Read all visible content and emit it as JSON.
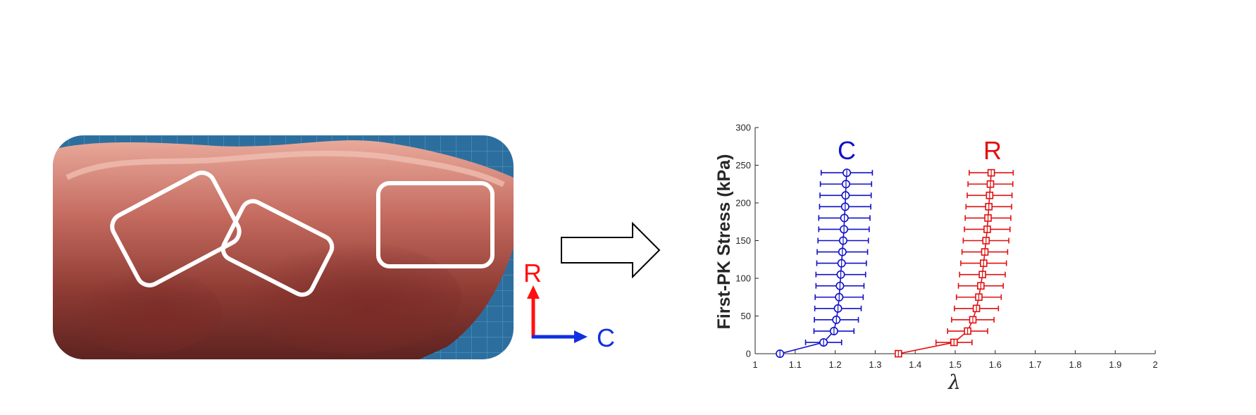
{
  "photo": {
    "icon": "heart-valve-tissue-photo"
  },
  "orientation_key": {
    "r_label": "R",
    "c_label": "C",
    "r_color": "#ff1010",
    "c_color": "#1030e0"
  },
  "flow_arrow": {
    "icon": "right-arrow-outline-icon"
  },
  "chart_data": {
    "type": "line",
    "title": "",
    "xlabel": "λ",
    "ylabel": "First-PK Stress (kPa)",
    "xlim": [
      1,
      2
    ],
    "ylim": [
      0,
      300
    ],
    "x_ticks": [
      "1",
      "1.1",
      "1.2",
      "1.3",
      "1.4",
      "1.5",
      "1.6",
      "1.7",
      "1.8",
      "1.9",
      "2"
    ],
    "y_ticks": [
      "0",
      "50",
      "100",
      "150",
      "200",
      "250",
      "300"
    ],
    "grid": false,
    "stress": [
      0,
      15,
      30,
      45,
      60,
      75,
      90,
      105,
      120,
      135,
      150,
      165,
      180,
      195,
      210,
      225,
      240
    ],
    "series": [
      {
        "name": "C",
        "color": "#1010c8",
        "marker": "circle",
        "x": [
          1.062,
          1.171,
          1.197,
          1.203,
          1.207,
          1.21,
          1.212,
          1.214,
          1.216,
          1.218,
          1.22,
          1.222,
          1.223,
          1.225,
          1.226,
          1.227,
          1.229
        ],
        "xerr": [
          null,
          0.045,
          0.05,
          0.055,
          0.058,
          0.06,
          0.06,
          0.062,
          0.062,
          0.063,
          0.063,
          0.063,
          0.064,
          0.064,
          0.064,
          0.064,
          0.064
        ]
      },
      {
        "name": "R",
        "color": "#e01010",
        "marker": "square",
        "x": [
          1.358,
          1.497,
          1.531,
          1.544,
          1.553,
          1.559,
          1.564,
          1.568,
          1.571,
          1.574,
          1.577,
          1.58,
          1.582,
          1.584,
          1.586,
          1.588,
          1.59
        ],
        "xerr": [
          null,
          0.045,
          0.05,
          0.053,
          0.055,
          0.056,
          0.056,
          0.057,
          0.057,
          0.057,
          0.057,
          0.057,
          0.057,
          0.057,
          0.056,
          0.056,
          0.055
        ]
      }
    ]
  }
}
